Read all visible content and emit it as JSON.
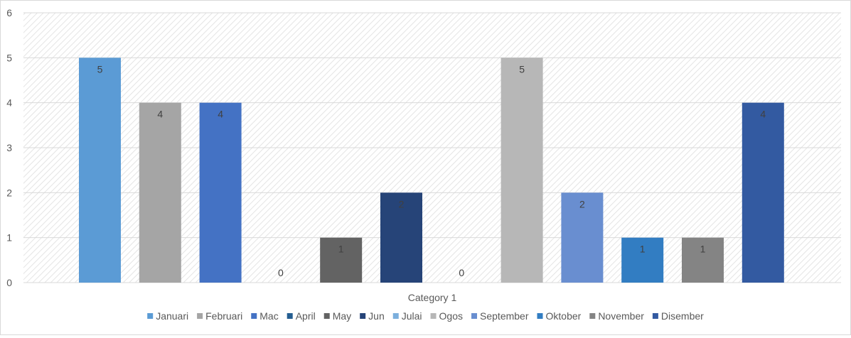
{
  "chart_data": {
    "type": "bar",
    "categories": [
      "Category 1"
    ],
    "xlabel": "Category 1",
    "ylim": [
      0,
      6
    ],
    "yticks": [
      0,
      1,
      2,
      3,
      4,
      5,
      6
    ],
    "grid": true,
    "legend_position": "bottom",
    "series": [
      {
        "name": "Januari",
        "values": [
          5
        ],
        "color": "#5b9bd5",
        "label_color": "#404040"
      },
      {
        "name": "Februari",
        "values": [
          4
        ],
        "color": "#a5a5a5",
        "label_color": "#404040"
      },
      {
        "name": "Mac",
        "values": [
          4
        ],
        "color": "#4472c4",
        "label_color": "#404040"
      },
      {
        "name": "April",
        "values": [
          0
        ],
        "color": "#255e91",
        "label_color": "#404040"
      },
      {
        "name": "May",
        "values": [
          1
        ],
        "color": "#636363",
        "label_color": "#404040"
      },
      {
        "name": "Jun",
        "values": [
          2
        ],
        "color": "#264478",
        "label_color": "#404040"
      },
      {
        "name": "Julai",
        "values": [
          0
        ],
        "color": "#7cafdd",
        "label_color": "#404040"
      },
      {
        "name": "Ogos",
        "values": [
          5
        ],
        "color": "#b7b7b7",
        "label_color": "#404040"
      },
      {
        "name": "September",
        "values": [
          2
        ],
        "color": "#698ed0",
        "label_color": "#404040"
      },
      {
        "name": "Oktober",
        "values": [
          1
        ],
        "color": "#327dc2",
        "label_color": "#404040"
      },
      {
        "name": "November",
        "values": [
          1
        ],
        "color": "#848484",
        "label_color": "#404040"
      },
      {
        "name": "Disember",
        "values": [
          4
        ],
        "color": "#335aa1",
        "label_color": "#404040"
      }
    ]
  }
}
